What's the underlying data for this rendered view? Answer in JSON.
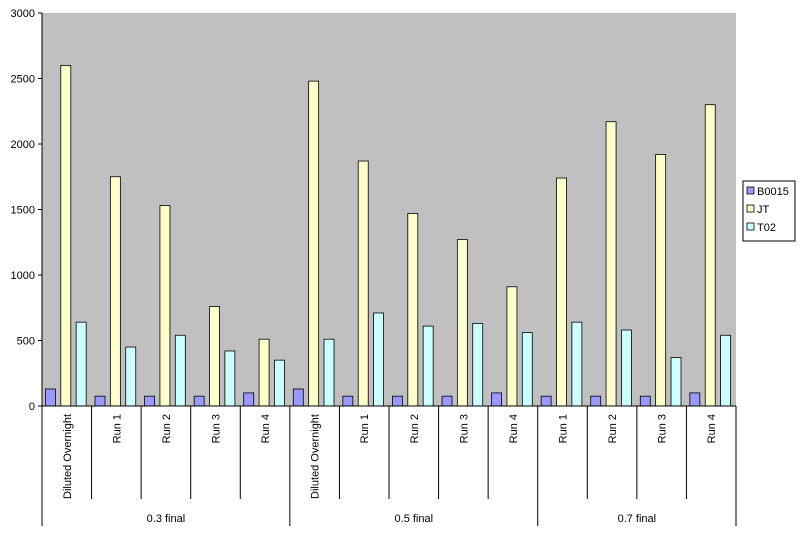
{
  "chart_data": {
    "type": "bar",
    "title": "",
    "xlabel": "",
    "ylabel": "",
    "ylim": [
      0,
      3000
    ],
    "yticks": [
      0,
      500,
      1000,
      1500,
      2000,
      2500,
      3000
    ],
    "grid": false,
    "legend_position": "right",
    "groups": [
      {
        "label": "0.3 final",
        "categories": [
          "Diluted Overnight",
          "Run 1",
          "Run 2",
          "Run 3",
          "Run 4"
        ]
      },
      {
        "label": "0.5 final",
        "categories": [
          "Diluted Overnight",
          "Run 1",
          "Run 2",
          "Run 3",
          "Run 4"
        ]
      },
      {
        "label": "0.7 final",
        "categories": [
          "Run 1",
          "Run 2",
          "Run 3",
          "Run 4"
        ]
      }
    ],
    "series": [
      {
        "name": "B0015",
        "color": "#9999ff",
        "values": [
          130,
          75,
          75,
          75,
          100,
          130,
          75,
          75,
          75,
          100,
          75,
          75,
          75,
          100
        ]
      },
      {
        "name": "JT",
        "color": "#ffffcc",
        "values": [
          2600,
          1750,
          1530,
          760,
          510,
          2480,
          1870,
          1470,
          1270,
          910,
          1740,
          2170,
          1920,
          2300
        ]
      },
      {
        "name": "T02",
        "color": "#ccffff",
        "values": [
          640,
          450,
          540,
          420,
          350,
          510,
          710,
          610,
          630,
          560,
          640,
          580,
          370,
          540
        ]
      }
    ],
    "colors": {
      "plot_background": "#c0c0c0",
      "axis": "#000000"
    }
  }
}
